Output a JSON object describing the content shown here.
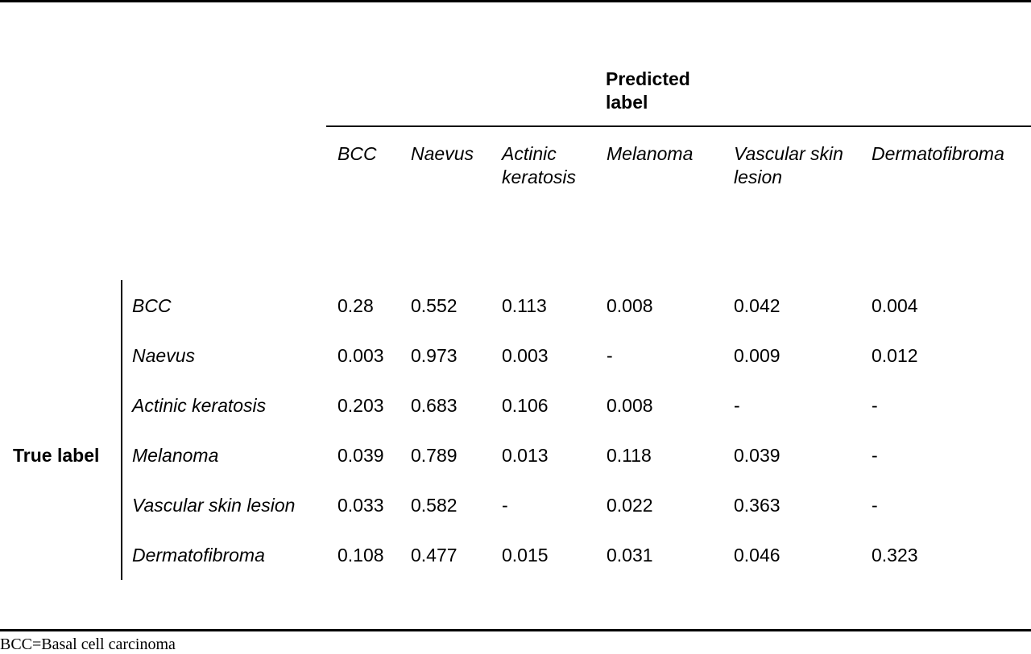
{
  "predicted_title": "Predicted label",
  "true_title": "True label",
  "columns": [
    "BCC",
    "Naevus",
    "Actinic keratosis",
    "Melanoma",
    "Vascular skin lesion",
    "Dermatofibroma"
  ],
  "rows": [
    {
      "label": "BCC",
      "values": [
        "0.28",
        "0.552",
        "0.113",
        "0.008",
        "0.042",
        "0.004"
      ]
    },
    {
      "label": "Naevus",
      "values": [
        "0.003",
        "0.973",
        "0.003",
        "-",
        "0.009",
        "0.012"
      ]
    },
    {
      "label": "Actinic keratosis",
      "values": [
        "0.203",
        "0.683",
        "0.106",
        "0.008",
        "-",
        "-"
      ]
    },
    {
      "label": "Melanoma",
      "values": [
        "0.039",
        "0.789",
        "0.013",
        "0.118",
        "0.039",
        "-"
      ]
    },
    {
      "label": "Vascular skin lesion",
      "values": [
        "0.033",
        "0.582",
        "-",
        "0.022",
        "0.363",
        "-"
      ]
    },
    {
      "label": "Dermatofibroma",
      "values": [
        "0.108",
        "0.477",
        "0.015",
        "0.031",
        "0.046",
        "0.323"
      ]
    }
  ],
  "footnote": "BCC=Basal cell carcinoma"
}
